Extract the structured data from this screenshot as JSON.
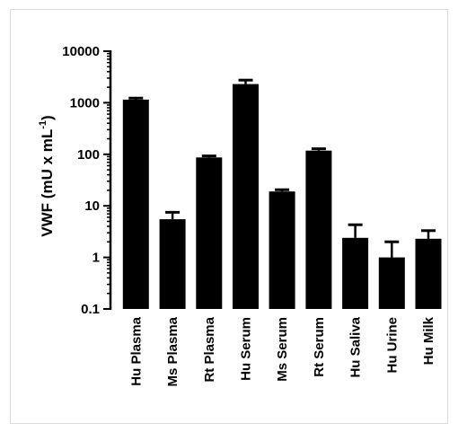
{
  "chart_data": {
    "type": "bar",
    "yscale": "log",
    "ylim": [
      0.1,
      10000
    ],
    "ylabel": "VWF (mU x mL-1)",
    "ylabel_parts": {
      "main": "VWF (mU x mL",
      "superscript": "-1",
      "close": ")"
    },
    "y_ticks": [
      {
        "value": 0.1,
        "label": "0.1"
      },
      {
        "value": 1,
        "label": "1"
      },
      {
        "value": 10,
        "label": "10"
      },
      {
        "value": 100,
        "label": "100"
      },
      {
        "value": 1000,
        "label": "1000"
      },
      {
        "value": 10000,
        "label": "10000"
      }
    ],
    "categories": [
      "Hu Plasma",
      "Ms Plasma",
      "Rt Plasma",
      "Hu Serum",
      "Ms Serum",
      "Rt Serum",
      "Hu Saliva",
      "Hu Urine",
      "Hu Milk"
    ],
    "values": [
      1150,
      5.5,
      87,
      2300,
      19,
      118,
      2.4,
      1.0,
      2.3
    ],
    "error_upper": [
      1230,
      7.5,
      93,
      2750,
      20.5,
      128,
      4.3,
      2.0,
      3.3
    ],
    "bar_color": "#000000",
    "grid": false,
    "legend": "none"
  }
}
